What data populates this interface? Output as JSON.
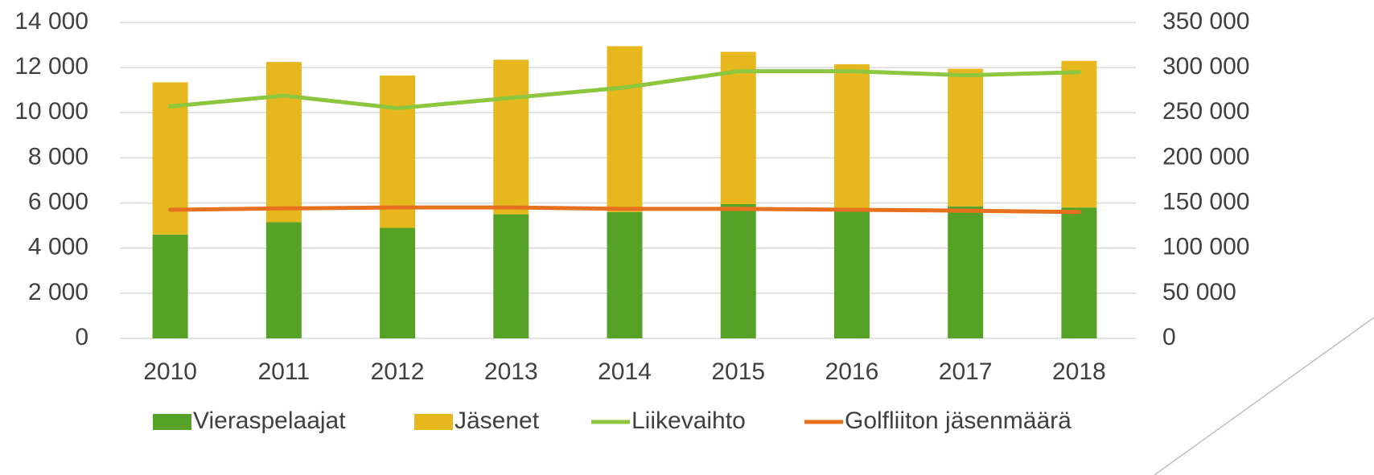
{
  "chart_data": {
    "type": "bar",
    "categories": [
      "2010",
      "2011",
      "2012",
      "2013",
      "2014",
      "2015",
      "2016",
      "2017",
      "2018"
    ],
    "series": [
      {
        "name": "Vieraspelaajat",
        "type": "bar",
        "color": "#56a227",
        "values": [
          4600,
          5150,
          4900,
          5500,
          5600,
          5950,
          5650,
          5850,
          5800
        ]
      },
      {
        "name": "Jäsenet",
        "type": "bar",
        "color": "#e6b81e",
        "values": [
          6750,
          7100,
          6750,
          6850,
          7350,
          6750,
          6500,
          6100,
          6500
        ]
      },
      {
        "name": "Liikevaihto",
        "type": "line",
        "axis": "y2",
        "color": "#8dc63f",
        "values": [
          257000,
          269000,
          255000,
          266500,
          278000,
          296000,
          296000,
          291500,
          295000
        ]
      },
      {
        "name": "Golfliiton jäsenmäärä",
        "type": "line",
        "axis": "y2",
        "color": "#e8711f",
        "values": [
          142500,
          144000,
          145000,
          145000,
          143500,
          143500,
          142500,
          141500,
          140000
        ]
      }
    ],
    "stacked": true,
    "ylim": [
      0,
      14000
    ],
    "yticks": [
      0,
      {
        "value": 2000,
        "label": "2 000"
      },
      {
        "value": 4000,
        "label": "4 000"
      },
      {
        "value": 6000,
        "label": "6 000"
      },
      {
        "value": 8000,
        "label": "8 000"
      },
      {
        "value": 10000,
        "label": "10 000"
      },
      {
        "value": 12000,
        "label": "12 000"
      },
      {
        "value": 14000,
        "label": "14 000"
      }
    ],
    "y2lim": [
      0,
      350000
    ],
    "y2ticks": [
      0,
      {
        "value": 50000,
        "label": "50 000"
      },
      {
        "value": 100000,
        "label": "100 000"
      },
      {
        "value": 150000,
        "label": "150 000"
      },
      {
        "value": 200000,
        "label": "200 000"
      },
      {
        "value": 250000,
        "label": "250 000"
      },
      {
        "value": 300000,
        "label": "300 000"
      },
      {
        "value": 350000,
        "label": "350 000"
      }
    ],
    "grid": true,
    "legend": "bottom"
  }
}
